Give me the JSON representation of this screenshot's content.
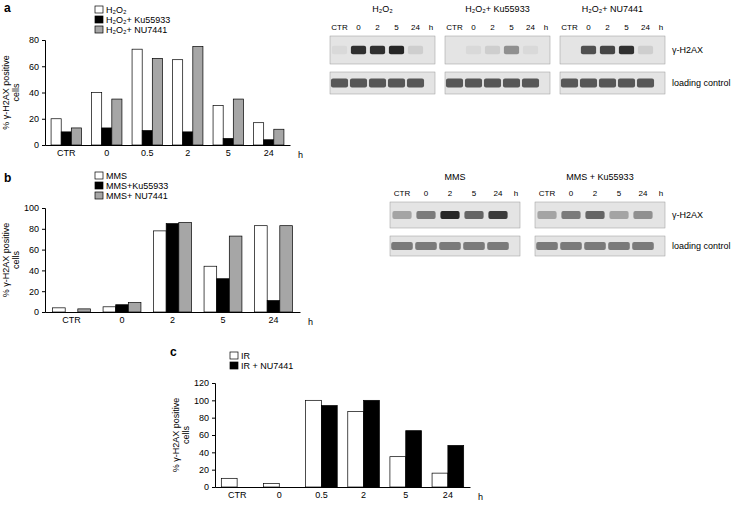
{
  "chart_data": [
    {
      "type": "bar",
      "title": "a",
      "ylabel": "% γ-H2AX positive cells",
      "xlabel": "h",
      "categories": [
        "CTR",
        "0",
        "0.5",
        "2",
        "5",
        "24"
      ],
      "series": [
        {
          "name": "H₂O₂",
          "color": "#ffffff",
          "values": [
            20,
            40,
            73,
            65,
            30,
            17
          ]
        },
        {
          "name": "H₂O₂+ Ku55933",
          "color": "#000000",
          "values": [
            10,
            13,
            11,
            10,
            5,
            4
          ]
        },
        {
          "name": "H₂O₂+ NU7441",
          "color": "#a6a6a6",
          "values": [
            13,
            35,
            66,
            75,
            35,
            12
          ]
        }
      ],
      "ylim": [
        0,
        80
      ],
      "yticks": [
        0,
        20,
        40,
        60,
        80
      ],
      "legend": "top-left"
    },
    {
      "type": "bar",
      "title": "b",
      "ylabel": "% γ-H2AX positive cells",
      "xlabel": "h",
      "categories": [
        "CTR",
        "0",
        "2",
        "5",
        "24"
      ],
      "series": [
        {
          "name": "MMS",
          "color": "#ffffff",
          "values": [
            4,
            5,
            78,
            44,
            83
          ]
        },
        {
          "name": "MMS+Ku55933",
          "color": "#000000",
          "values": [
            null,
            7,
            85,
            32,
            11
          ]
        },
        {
          "name": "MMS+ NU7441",
          "color": "#a6a6a6",
          "values": [
            3,
            9,
            86,
            73,
            83
          ]
        }
      ],
      "ylim": [
        0,
        100
      ],
      "yticks": [
        0,
        20,
        40,
        60,
        80,
        100
      ],
      "legend": "top-left"
    },
    {
      "type": "bar",
      "title": "c",
      "ylabel": "% γ-H2AX positive cells",
      "xlabel": "h",
      "categories": [
        "CTR",
        "0",
        "0.5",
        "2",
        "5",
        "24"
      ],
      "series": [
        {
          "name": "IR",
          "color": "#ffffff",
          "values": [
            10,
            4,
            100,
            87,
            35,
            16
          ]
        },
        {
          "name": "IR + NU7441",
          "color": "#000000",
          "values": [
            null,
            null,
            94,
            100,
            65,
            48
          ]
        }
      ],
      "ylim": [
        0,
        120
      ],
      "yticks": [
        0,
        20,
        40,
        60,
        80,
        100,
        120
      ],
      "legend": "top-left"
    }
  ],
  "blots": [
    {
      "lanes": [
        "CTR",
        "0",
        "2",
        "5",
        "24"
      ],
      "unit": "h",
      "row_labels": [
        "γ-H2AX",
        "loading control"
      ],
      "groups": [
        {
          "title": "H₂O₂",
          "gamma": [
            0.05,
            0.85,
            0.85,
            0.9,
            0.1
          ],
          "loading": [
            0.8,
            0.8,
            0.8,
            0.8,
            0.8
          ]
        },
        {
          "title": "H₂O₂+ Ku55933",
          "gamma": [
            0,
            0.05,
            0.1,
            0.4,
            0.05
          ],
          "loading": [
            0.8,
            0.8,
            0.8,
            0.8,
            0.8
          ]
        },
        {
          "title": "H₂O₂+ NU7441",
          "gamma": [
            0,
            0.7,
            0.75,
            0.85,
            0.1
          ],
          "loading": [
            0.8,
            0.8,
            0.8,
            0.8,
            0.8
          ]
        }
      ]
    },
    {
      "lanes": [
        "CTR",
        "0",
        "2",
        "5",
        "24"
      ],
      "unit": "h",
      "row_labels": [
        "γ-H2AX",
        "loading control"
      ],
      "groups": [
        {
          "title": "MMS",
          "gamma": [
            0.3,
            0.5,
            0.9,
            0.6,
            0.8
          ],
          "loading": [
            0.6,
            0.6,
            0.6,
            0.6,
            0.6
          ]
        },
        {
          "title": "MMS + Ku55933",
          "gamma": [
            0.3,
            0.5,
            0.6,
            0.3,
            0.4
          ],
          "loading": [
            0.6,
            0.6,
            0.6,
            0.6,
            0.6
          ]
        }
      ]
    }
  ]
}
